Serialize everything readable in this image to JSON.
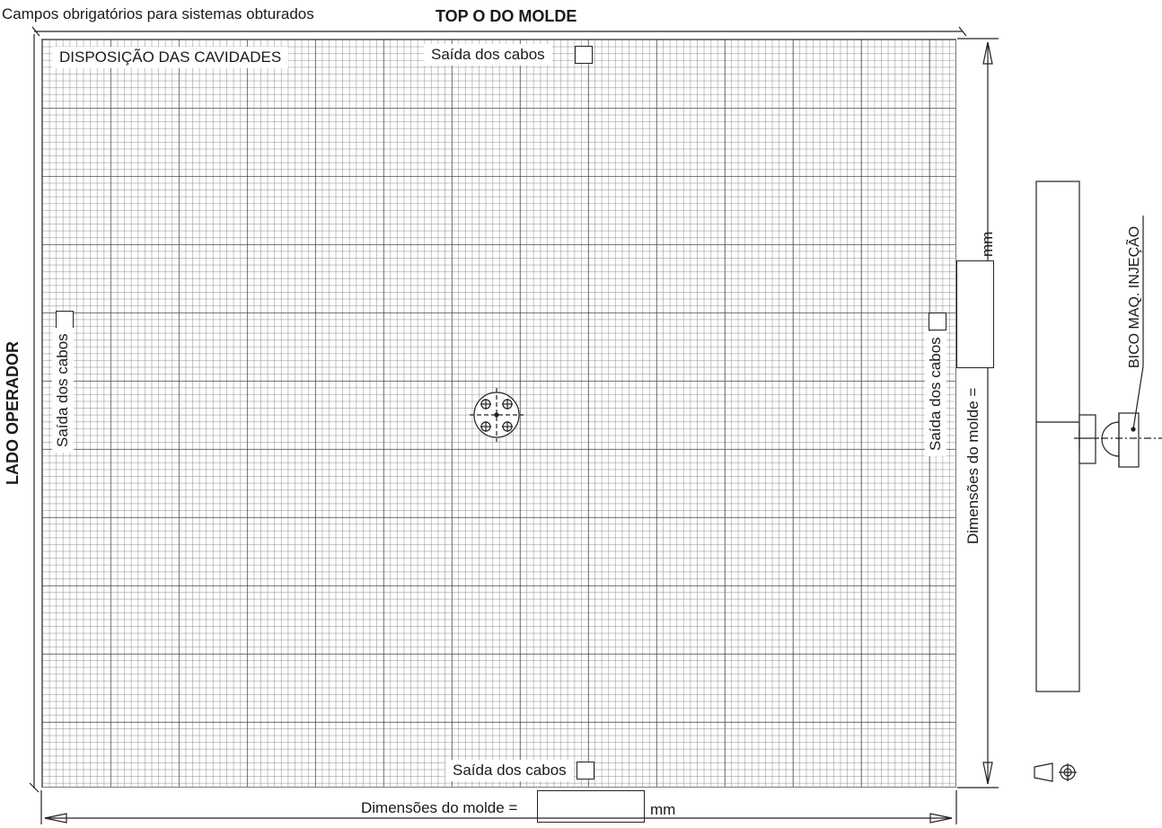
{
  "header": {
    "note": "Campos obrigatórios para sistemas obturados",
    "title": "TOP O DO MOLDE"
  },
  "grid": {
    "title": "DISPOSIÇÃO DAS CAVIDADES",
    "cable_exit_top": "Saída dos cabos",
    "cable_exit_bottom": "Saída dos cabos",
    "cable_exit_left": "Saída dos cabos",
    "cable_exit_right": "Saída dos cabos"
  },
  "side_label": "LADO OPERADOR",
  "dimensions": {
    "horizontal_label": "Dimensões do molde  =",
    "horizontal_unit": "mm",
    "horizontal_value": "",
    "vertical_label": "Dimensões do molde =",
    "vertical_unit": "mm",
    "vertical_value": ""
  },
  "side_view": {
    "nozzle_label": "BICO MAQ. INJEÇÃO"
  },
  "colors": {
    "grid_major": "#3c3c3c",
    "grid_minor": "#787878",
    "line": "#222222"
  },
  "icons": [
    "projection-symbol-icon"
  ]
}
